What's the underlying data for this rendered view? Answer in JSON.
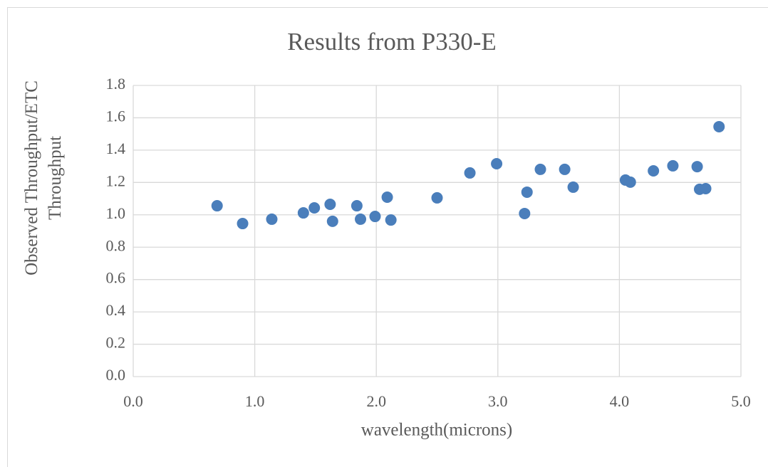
{
  "chart_data": {
    "type": "scatter",
    "title": "Results from P330-E",
    "xlabel": "wavelength(microns)",
    "ylabel": "Observed Throughput/ETC Throughput",
    "color": "#4a7ebb",
    "grid": true,
    "x": [
      0.69,
      0.9,
      1.14,
      1.4,
      1.49,
      1.62,
      1.64,
      1.84,
      1.87,
      1.99,
      2.09,
      2.12,
      2.5,
      2.77,
      2.99,
      3.22,
      3.24,
      3.35,
      3.55,
      3.62,
      4.05,
      4.09,
      4.28,
      4.44,
      4.64,
      4.66,
      4.71,
      4.82
    ],
    "values": [
      1.056,
      0.946,
      0.973,
      1.012,
      1.043,
      1.065,
      0.96,
      1.056,
      0.973,
      0.99,
      1.109,
      0.968,
      1.105,
      1.259,
      1.316,
      1.008,
      1.14,
      1.281,
      1.281,
      1.171,
      1.215,
      1.202,
      1.272,
      1.303,
      1.298,
      1.158,
      1.162,
      1.545
    ],
    "xlim": [
      0,
      5
    ],
    "ylim": [
      0,
      1.8
    ],
    "xticks": [
      {
        "value": 0,
        "label": "0.0"
      },
      {
        "value": 1,
        "label": "1.0"
      },
      {
        "value": 2,
        "label": "2.0"
      },
      {
        "value": 3,
        "label": "3.0"
      },
      {
        "value": 4,
        "label": "4.0"
      },
      {
        "value": 5,
        "label": "5.0"
      }
    ],
    "yticks": [
      {
        "value": 0,
        "label": "0.0"
      },
      0.2,
      0.4,
      0.6,
      0.8,
      {
        "value": 1,
        "label": "1.0"
      },
      1.2,
      1.4,
      1.6,
      1.8
    ]
  }
}
